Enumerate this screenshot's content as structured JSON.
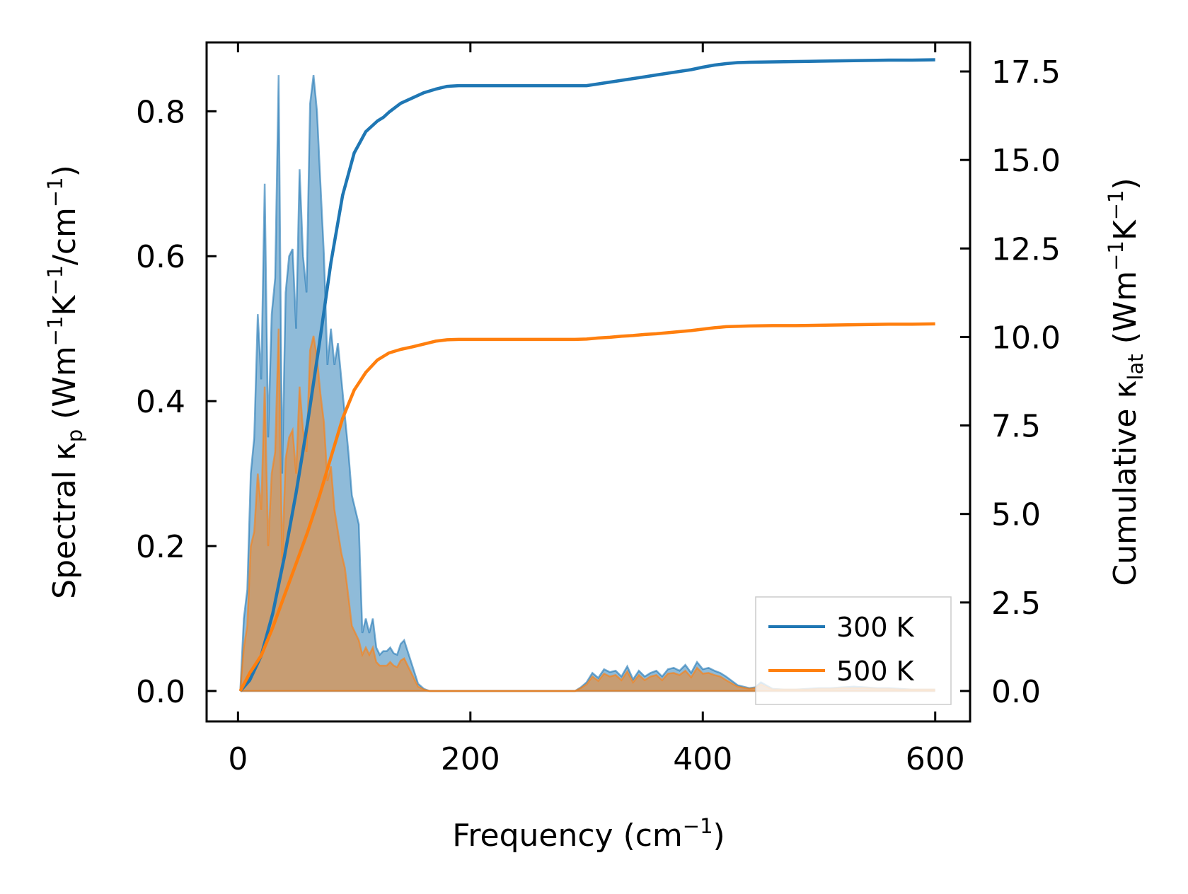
{
  "chart_data": {
    "type": "area",
    "xlabel_main": "Frequency (cm",
    "xlabel_sup": "−1",
    "xlabel_end": ")",
    "ylabel_left": {
      "prefix": "Spectral κ",
      "sub": "p",
      "mid1": " (Wm",
      "sup1": "−1",
      "mid2": "K",
      "sup2": "−1",
      "mid3": "/cm",
      "sup3": "−1",
      "end": ")"
    },
    "ylabel_right": {
      "prefix": "Cumulative κ",
      "sub": "lat",
      "mid1": " (Wm",
      "sup1": "−1",
      "mid2": "K",
      "sup2": "−1",
      "end": ")"
    },
    "xlim": [
      -27,
      630
    ],
    "ylim_left": [
      -0.042,
      0.895
    ],
    "ylim_right": [
      -0.86,
      18.32
    ],
    "x_ticks": [
      0,
      200,
      400,
      600
    ],
    "x_tick_labels": [
      "0",
      "200",
      "400",
      "600"
    ],
    "y_left_ticks": [
      0.0,
      0.2,
      0.4,
      0.6,
      0.8
    ],
    "y_left_tick_labels": [
      "0.0",
      "0.2",
      "0.4",
      "0.6",
      "0.8"
    ],
    "y_right_ticks": [
      0.0,
      2.5,
      5.0,
      7.5,
      10.0,
      12.5,
      15.0,
      17.5
    ],
    "y_right_tick_labels": [
      "0.0",
      "2.5",
      "5.0",
      "7.5",
      "10.0",
      "12.5",
      "15.0",
      "17.5"
    ],
    "legend_position": "lower-right",
    "colors": {
      "300K": "#1f77b4",
      "500K": "#ff7f0e"
    },
    "series": [
      {
        "name": "300 K",
        "spectral_x": [
          2,
          5,
          8,
          11,
          14,
          17,
          20,
          23,
          26,
          29,
          32,
          35,
          38,
          41,
          44,
          47,
          50,
          53,
          56,
          59,
          62,
          65,
          68,
          71,
          74,
          77,
          80,
          83,
          86,
          89,
          92,
          95,
          98,
          101,
          104,
          107,
          110,
          113,
          116,
          119,
          122,
          125,
          128,
          131,
          134,
          137,
          140,
          143,
          146,
          150,
          155,
          160,
          165,
          170,
          175,
          180,
          185,
          190,
          195,
          200,
          220,
          260,
          290,
          295,
          300,
          305,
          310,
          315,
          320,
          325,
          330,
          335,
          340,
          345,
          350,
          355,
          360,
          365,
          370,
          375,
          380,
          385,
          390,
          395,
          400,
          405,
          410,
          415,
          420,
          430,
          440,
          445,
          450,
          460,
          470,
          480,
          490,
          500,
          510,
          520,
          530,
          540,
          550,
          560,
          570,
          580,
          590,
          600
        ],
        "spectral_y": [
          0.0,
          0.1,
          0.14,
          0.3,
          0.35,
          0.52,
          0.43,
          0.7,
          0.35,
          0.52,
          0.57,
          0.85,
          0.3,
          0.55,
          0.6,
          0.61,
          0.5,
          0.72,
          0.6,
          0.55,
          0.81,
          0.85,
          0.8,
          0.7,
          0.6,
          0.45,
          0.5,
          0.45,
          0.48,
          0.43,
          0.38,
          0.33,
          0.27,
          0.25,
          0.23,
          0.08,
          0.1,
          0.08,
          0.1,
          0.06,
          0.05,
          0.055,
          0.055,
          0.06,
          0.052,
          0.05,
          0.065,
          0.07,
          0.055,
          0.035,
          0.01,
          0.003,
          0.0,
          0.0,
          0.0,
          0.0,
          0.0,
          0.0,
          0.0,
          0.0,
          0.0,
          0.0,
          0.0,
          0.005,
          0.012,
          0.025,
          0.018,
          0.03,
          0.026,
          0.028,
          0.02,
          0.034,
          0.016,
          0.028,
          0.02,
          0.025,
          0.028,
          0.02,
          0.03,
          0.032,
          0.028,
          0.036,
          0.025,
          0.04,
          0.03,
          0.032,
          0.028,
          0.025,
          0.02,
          0.008,
          0.004,
          0.005,
          0.012,
          0.003,
          0.002,
          0.002,
          0.003,
          0.004,
          0.004,
          0.005,
          0.006,
          0.005,
          0.004,
          0.004,
          0.003,
          0.002,
          0.002,
          0.002
        ],
        "cumulative_x": [
          2,
          10,
          20,
          30,
          40,
          50,
          60,
          70,
          80,
          90,
          100,
          110,
          120,
          125,
          130,
          140,
          150,
          160,
          170,
          180,
          190,
          200,
          250,
          290,
          300,
          310,
          320,
          330,
          340,
          350,
          360,
          370,
          380,
          390,
          400,
          410,
          420,
          430,
          440,
          460,
          480,
          500,
          520,
          540,
          560,
          580,
          600
        ],
        "cumulative_y": [
          0.0,
          0.3,
          1.0,
          2.2,
          3.8,
          5.6,
          7.6,
          9.8,
          12.1,
          14.0,
          15.2,
          15.8,
          16.1,
          16.2,
          16.35,
          16.6,
          16.75,
          16.9,
          17.0,
          17.08,
          17.1,
          17.1,
          17.1,
          17.1,
          17.1,
          17.15,
          17.2,
          17.25,
          17.3,
          17.35,
          17.4,
          17.45,
          17.5,
          17.55,
          17.62,
          17.68,
          17.72,
          17.75,
          17.76,
          17.77,
          17.78,
          17.79,
          17.8,
          17.81,
          17.82,
          17.82,
          17.83
        ]
      },
      {
        "name": "500 K",
        "spectral_x": [
          2,
          5,
          8,
          11,
          14,
          17,
          20,
          23,
          26,
          29,
          32,
          35,
          38,
          41,
          44,
          47,
          50,
          53,
          56,
          59,
          62,
          65,
          68,
          71,
          74,
          77,
          80,
          83,
          86,
          89,
          92,
          95,
          98,
          101,
          104,
          107,
          110,
          113,
          116,
          119,
          122,
          125,
          128,
          131,
          134,
          137,
          140,
          143,
          146,
          150,
          155,
          160,
          165,
          170,
          175,
          180,
          185,
          190,
          195,
          200,
          220,
          260,
          290,
          295,
          300,
          305,
          310,
          315,
          320,
          325,
          330,
          335,
          340,
          345,
          350,
          355,
          360,
          365,
          370,
          375,
          380,
          385,
          390,
          395,
          400,
          405,
          410,
          415,
          420,
          430,
          440,
          445,
          450,
          460,
          470,
          480,
          490,
          500,
          510,
          520,
          530,
          540,
          550,
          560,
          570,
          580,
          590,
          600
        ],
        "spectral_y": [
          0.0,
          0.06,
          0.09,
          0.2,
          0.22,
          0.3,
          0.25,
          0.42,
          0.2,
          0.3,
          0.33,
          0.5,
          0.18,
          0.32,
          0.35,
          0.36,
          0.3,
          0.42,
          0.36,
          0.33,
          0.47,
          0.49,
          0.46,
          0.41,
          0.37,
          0.29,
          0.31,
          0.25,
          0.22,
          0.19,
          0.17,
          0.13,
          0.09,
          0.08,
          0.07,
          0.05,
          0.06,
          0.05,
          0.06,
          0.04,
          0.035,
          0.035,
          0.035,
          0.04,
          0.035,
          0.033,
          0.042,
          0.045,
          0.035,
          0.022,
          0.006,
          0.002,
          0.0,
          0.0,
          0.0,
          0.0,
          0.0,
          0.0,
          0.0,
          0.0,
          0.0,
          0.0,
          0.0,
          0.004,
          0.009,
          0.02,
          0.014,
          0.024,
          0.02,
          0.022,
          0.015,
          0.027,
          0.012,
          0.022,
          0.015,
          0.02,
          0.022,
          0.015,
          0.024,
          0.025,
          0.022,
          0.028,
          0.019,
          0.032,
          0.024,
          0.025,
          0.022,
          0.02,
          0.015,
          0.006,
          0.003,
          0.004,
          0.009,
          0.002,
          0.002,
          0.002,
          0.002,
          0.003,
          0.003,
          0.004,
          0.004,
          0.004,
          0.003,
          0.003,
          0.002,
          0.002,
          0.002,
          0.002
        ],
        "cumulative_x": [
          2,
          10,
          20,
          30,
          40,
          50,
          60,
          70,
          80,
          90,
          100,
          110,
          120,
          125,
          130,
          140,
          150,
          160,
          170,
          180,
          190,
          200,
          250,
          290,
          300,
          310,
          320,
          330,
          340,
          350,
          360,
          370,
          380,
          390,
          400,
          410,
          420,
          430,
          440,
          460,
          480,
          500,
          520,
          540,
          560,
          580,
          600
        ],
        "cumulative_y": [
          0.0,
          0.5,
          1.0,
          1.8,
          2.7,
          3.6,
          4.5,
          5.5,
          6.6,
          7.7,
          8.5,
          9.0,
          9.35,
          9.45,
          9.55,
          9.65,
          9.72,
          9.8,
          9.88,
          9.92,
          9.93,
          9.93,
          9.93,
          9.93,
          9.94,
          9.97,
          9.99,
          10.02,
          10.04,
          10.07,
          10.09,
          10.12,
          10.15,
          10.18,
          10.22,
          10.26,
          10.29,
          10.3,
          10.31,
          10.32,
          10.32,
          10.33,
          10.34,
          10.35,
          10.36,
          10.36,
          10.37
        ]
      }
    ]
  }
}
